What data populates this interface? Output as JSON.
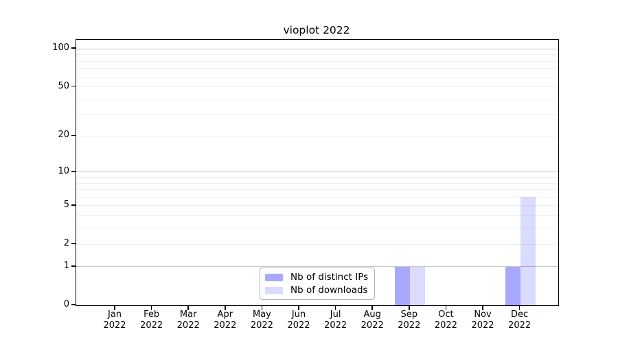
{
  "chart_data": {
    "type": "bar",
    "title": "vioplot 2022",
    "categories": [
      "Jan",
      "Feb",
      "Mar",
      "Apr",
      "May",
      "Jun",
      "Jul",
      "Aug",
      "Sep",
      "Oct",
      "Nov",
      "Dec"
    ],
    "category_year": "2022",
    "series": [
      {
        "name": "Nb of distinct IPs",
        "color": "rgba(0,0,255,0.34)",
        "values": [
          0,
          0,
          0,
          0,
          0,
          0,
          0,
          0,
          1,
          0,
          0,
          1
        ]
      },
      {
        "name": "Nb of downloads",
        "color": "rgba(0,0,255,0.14)",
        "values": [
          0,
          0,
          0,
          0,
          0,
          0,
          0,
          0,
          1,
          0,
          0,
          6
        ]
      }
    ],
    "xlabel": "",
    "ylabel": "",
    "yscale": "log1p",
    "ylim": [
      0,
      100
    ],
    "yticks": [
      0,
      1,
      2,
      5,
      10,
      20,
      50,
      100
    ],
    "major_gridlines": [
      1,
      10,
      100
    ],
    "minor_gridlines": [
      2,
      3,
      4,
      5,
      6,
      7,
      8,
      9,
      20,
      30,
      40,
      50,
      60,
      70,
      80,
      90
    ],
    "grid": true,
    "legend_position": "bottom-center"
  },
  "colors": {
    "axis": "#000000",
    "background": "#ffffff",
    "major_gridline": "#c6c6c6",
    "minor_gridline": "#efefef",
    "legend_border": "#b4b4b4"
  }
}
